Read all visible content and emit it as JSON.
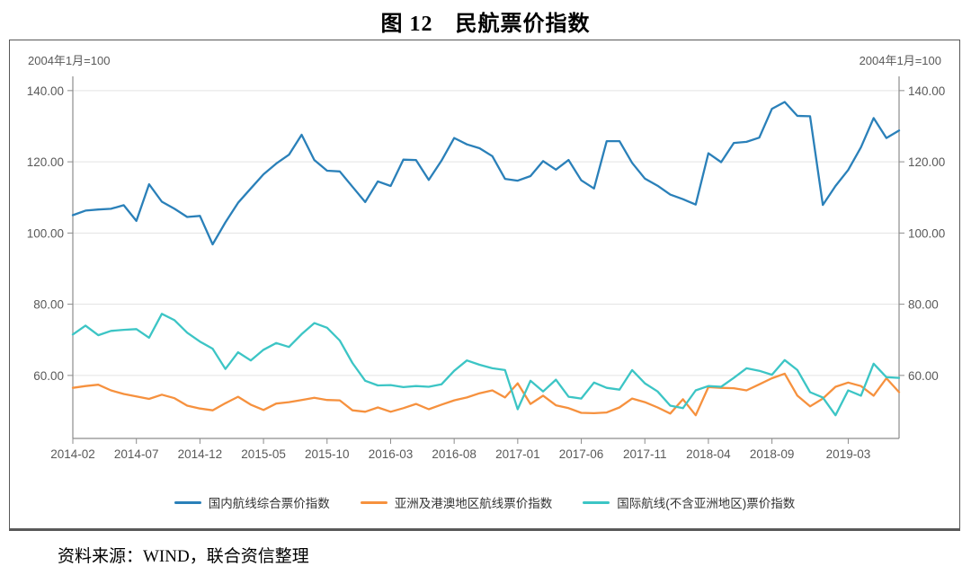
{
  "title": "图 12　民航票价指数",
  "axis_note_left": "2004年1月=100",
  "axis_note_right": "2004年1月=100",
  "source": "资料来源：WIND，联合资信整理",
  "colors": {
    "domestic_blue": "#2A80B9",
    "asia_orange": "#F6913E",
    "intl_cyan": "#3CC5C5",
    "grid": "#E3E3E3",
    "axis": "#8C8C8C",
    "tick_text": "#595959"
  },
  "chart_data": {
    "type": "line",
    "x": [
      "2014-02",
      "2014-03",
      "2014-04",
      "2014-05",
      "2014-06",
      "2014-07",
      "2014-08",
      "2014-09",
      "2014-10",
      "2014-11",
      "2014-12",
      "2015-01",
      "2015-02",
      "2015-03",
      "2015-04",
      "2015-05",
      "2015-06",
      "2015-07",
      "2015-08",
      "2015-09",
      "2015-10",
      "2015-11",
      "2015-12",
      "2016-01",
      "2016-02",
      "2016-03",
      "2016-04",
      "2016-05",
      "2016-06",
      "2016-07",
      "2016-08",
      "2016-09",
      "2016-10",
      "2016-11",
      "2016-12",
      "2017-01",
      "2017-02",
      "2017-03",
      "2017-04",
      "2017-05",
      "2017-06",
      "2017-07",
      "2017-08",
      "2017-09",
      "2017-10",
      "2017-11",
      "2017-12",
      "2018-01",
      "2018-02",
      "2018-03",
      "2018-04",
      "2018-05",
      "2018-06",
      "2018-07",
      "2018-08",
      "2018-09",
      "2018-10",
      "2018-11",
      "2018-12",
      "2019-01",
      "2019-02",
      "2019-03",
      "2019-04",
      "2019-05",
      "2019-06",
      "2019-07"
    ],
    "x_tick_labels": [
      "2014-02",
      "2014-07",
      "2014-12",
      "2015-05",
      "2015-10",
      "2016-03",
      "2016-08",
      "2017-01",
      "2017-06",
      "2017-11",
      "2018-04",
      "2018-09",
      "2019-03"
    ],
    "x_tick_indexes": [
      0,
      5,
      10,
      15,
      20,
      25,
      30,
      35,
      40,
      45,
      50,
      55,
      61
    ],
    "ylim": [
      42.3,
      144.0
    ],
    "yticks": [
      60,
      80,
      100,
      120,
      140
    ],
    "grid": "horizontal",
    "legend_position": "bottom",
    "title": "图 12　民航票价指数",
    "xlabel": "",
    "ylabel": "2004年1月=100",
    "series": [
      {
        "name": "国内航线综合票价指数",
        "color": "#2A80B9",
        "values": [
          105.0,
          106.3,
          106.6,
          106.8,
          107.8,
          103.4,
          113.7,
          108.8,
          106.8,
          104.5,
          104.8,
          96.8,
          103.0,
          108.5,
          112.5,
          116.5,
          119.5,
          122.0,
          127.6,
          120.5,
          117.5,
          117.3,
          113.0,
          108.7,
          114.5,
          113.2,
          120.6,
          120.5,
          114.9,
          120.3,
          126.7,
          124.9,
          123.8,
          121.6,
          115.2,
          114.7,
          116.0,
          120.2,
          117.8,
          120.5,
          114.8,
          112.5,
          125.8,
          125.8,
          119.7,
          115.3,
          113.3,
          110.8,
          109.5,
          108.0,
          122.4,
          119.9,
          125.3,
          125.6,
          126.8,
          134.9,
          136.8,
          132.9,
          132.8,
          107.9,
          113.2,
          117.7,
          124.1,
          132.3,
          126.7,
          128.8
        ]
      },
      {
        "name": "亚洲及港澳地区航线票价指数",
        "color": "#F6913E",
        "values": [
          56.5,
          57.0,
          57.4,
          55.8,
          54.8,
          54.1,
          53.4,
          54.6,
          53.6,
          51.5,
          50.7,
          50.2,
          52.2,
          54.0,
          51.8,
          50.3,
          52.1,
          52.5,
          53.1,
          53.7,
          53.1,
          53.0,
          50.2,
          49.8,
          51.0,
          49.8,
          50.8,
          52.0,
          50.5,
          51.8,
          53.0,
          53.8,
          55.0,
          55.8,
          53.8,
          57.8,
          52.0,
          54.3,
          51.6,
          50.8,
          49.5,
          49.4,
          49.6,
          51.0,
          53.5,
          52.5,
          51.0,
          49.3,
          53.3,
          48.8,
          56.7,
          56.5,
          56.4,
          55.8,
          57.5,
          59.2,
          60.5,
          54.3,
          51.3,
          53.5,
          56.8,
          58.0,
          57.0,
          54.3,
          59.2,
          55.3
        ]
      },
      {
        "name": "国际航线(不含亚洲地区)票价指数",
        "color": "#3CC5C5",
        "values": [
          71.5,
          74.0,
          71.3,
          72.5,
          72.8,
          73.0,
          70.6,
          77.3,
          75.5,
          72.0,
          69.5,
          67.5,
          61.8,
          66.5,
          64.2,
          67.2,
          69.1,
          68.0,
          71.6,
          74.7,
          73.4,
          69.8,
          63.5,
          58.5,
          57.2,
          57.3,
          56.7,
          57.0,
          56.8,
          57.5,
          61.3,
          64.2,
          63.0,
          62.0,
          61.5,
          50.5,
          58.5,
          55.5,
          58.8,
          54.0,
          53.5,
          58.0,
          56.5,
          56.0,
          61.5,
          57.8,
          55.5,
          51.5,
          50.8,
          55.8,
          57.0,
          56.8,
          59.3,
          62.0,
          61.3,
          60.2,
          64.3,
          61.5,
          55.3,
          53.8,
          48.8,
          55.8,
          54.3,
          63.3,
          59.5,
          59.3
        ]
      }
    ]
  }
}
